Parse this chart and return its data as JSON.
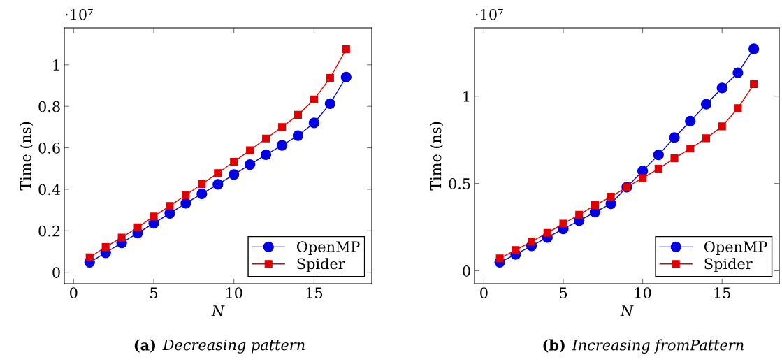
{
  "chart_data": [
    {
      "type": "line",
      "title": "(a) Decreasing pattern",
      "xlabel": "N",
      "ylabel": "Time (ns)",
      "annotations": [
        "·10⁷"
      ],
      "x": [
        1,
        2,
        3,
        4,
        5,
        6,
        7,
        8,
        9,
        10,
        11,
        12,
        13,
        14,
        15,
        16,
        17
      ],
      "series": [
        {
          "name": "OpenMP",
          "color": "#0000e0",
          "marker": "circle",
          "values": [
            0.048,
            0.094,
            0.142,
            0.189,
            0.236,
            0.284,
            0.333,
            0.378,
            0.424,
            0.471,
            0.519,
            0.567,
            0.612,
            0.659,
            0.72,
            0.813,
            0.941
          ]
        },
        {
          "name": "Spider",
          "color": "#e00000",
          "marker": "square",
          "values": [
            0.072,
            0.122,
            0.167,
            0.217,
            0.269,
            0.32,
            0.372,
            0.425,
            0.478,
            0.533,
            0.588,
            0.645,
            0.7,
            0.759,
            0.833,
            0.937,
            1.075
          ]
        }
      ],
      "xlim": [
        -0.58,
        18.6
      ],
      "xticks": [
        0,
        5,
        10,
        15
      ],
      "ylim": [
        -0.055,
        1.178
      ],
      "yticks": [
        0,
        0.2,
        0.4,
        0.6,
        0.8,
        1
      ],
      "legend": "bottom right",
      "grid": false
    },
    {
      "type": "line",
      "title": "(b) Increasing fromPattern",
      "xlabel": "N",
      "ylabel": "Time (ns)",
      "annotations": [
        "·10⁷"
      ],
      "x": [
        1,
        2,
        3,
        4,
        5,
        6,
        7,
        8,
        9,
        10,
        11,
        12,
        13,
        14,
        15,
        16,
        17
      ],
      "series": [
        {
          "name": "OpenMP",
          "color": "#0000e0",
          "marker": "circle",
          "values": [
            0.049,
            0.094,
            0.143,
            0.191,
            0.24,
            0.287,
            0.336,
            0.384,
            0.479,
            0.571,
            0.664,
            0.763,
            0.857,
            0.954,
            1.047,
            1.134,
            1.271
          ]
        },
        {
          "name": "Spider",
          "color": "#e00000",
          "marker": "square",
          "values": [
            0.071,
            0.119,
            0.167,
            0.217,
            0.27,
            0.321,
            0.376,
            0.424,
            0.479,
            0.531,
            0.584,
            0.644,
            0.7,
            0.759,
            0.827,
            0.931,
            1.069
          ]
        }
      ],
      "xlim": [
        -0.59,
        18.6
      ],
      "xticks": [
        0,
        5,
        10,
        15
      ],
      "ylim": [
        -0.074,
        1.391
      ],
      "yticks": [
        0,
        0.5,
        1
      ],
      "legend": "bottom right",
      "grid": false
    }
  ]
}
